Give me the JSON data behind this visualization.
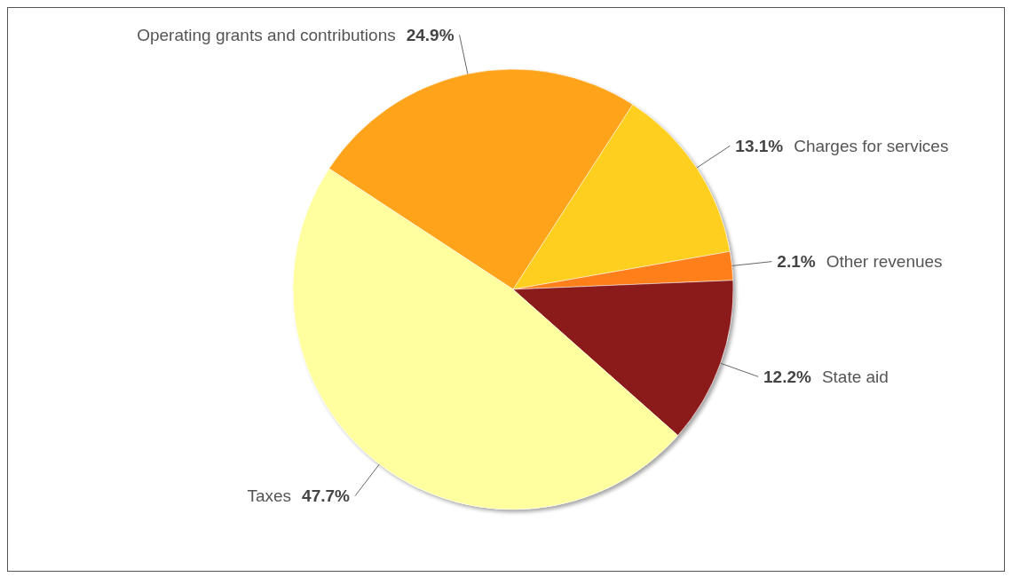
{
  "chart_data": {
    "type": "pie",
    "categories": [
      "Operating grants and contributions",
      "Charges for services",
      "Other revenues",
      "State aid",
      "Taxes"
    ],
    "values": [
      24.9,
      13.1,
      2.1,
      12.2,
      47.7
    ],
    "value_labels": [
      "24.9%",
      "13.1%",
      "2.1%",
      "12.2%",
      "47.7%"
    ],
    "colors": [
      "#ffa31a",
      "#ffcf1f",
      "#ff7f1a",
      "#8b1a1a",
      "#ffffa0"
    ]
  }
}
